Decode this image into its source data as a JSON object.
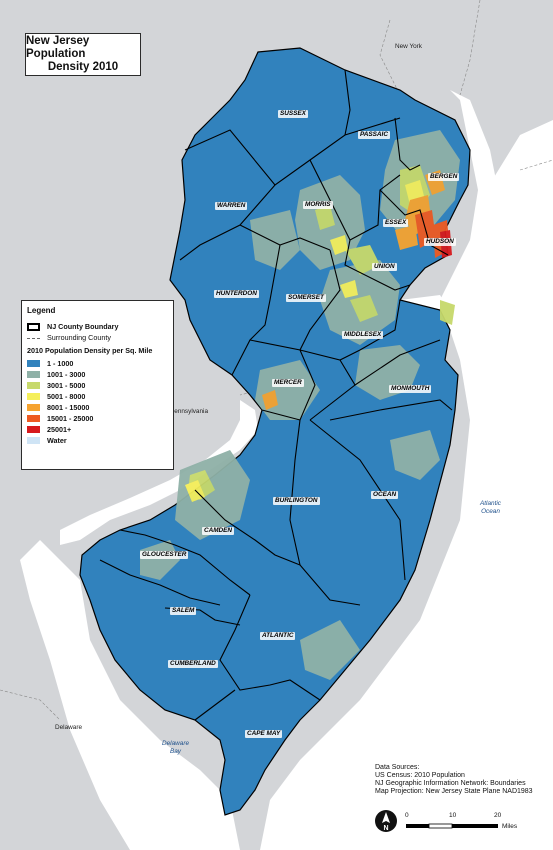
{
  "title": {
    "line1": "New Jersey Population",
    "line2": "Density 2010"
  },
  "legend": {
    "title": "Legend",
    "boundary_label": "NJ County Boundary",
    "surrounding_label": "Surrounding County",
    "density_heading": "2010 Population Density per Sq. Mile",
    "classes": [
      {
        "label": "1 - 1000",
        "color": "#3182bd"
      },
      {
        "label": "1001 - 3000",
        "color": "#8fb1a7"
      },
      {
        "label": "3001 - 5000",
        "color": "#c7d96b"
      },
      {
        "label": "5001 - 8000",
        "color": "#f5ef5a"
      },
      {
        "label": "8001 - 15000",
        "color": "#f6a330"
      },
      {
        "label": "15001 - 25000",
        "color": "#ee5a22"
      },
      {
        "label": "25001+",
        "color": "#d7191c"
      }
    ],
    "water_label": "Water",
    "water_color": "#cfe4f5"
  },
  "counties": {
    "sussex": "SUSSEX",
    "passaic": "PASSAIC",
    "bergen": "BERGEN",
    "warren": "WARREN",
    "morris": "MORRIS",
    "essex": "ESSEX",
    "hudson": "HUDSON",
    "union": "UNION",
    "hunterdon": "HUNTERDON",
    "somerset": "SOMERSET",
    "middlesex": "MIDDLESEX",
    "mercer": "MERCER",
    "monmouth": "MONMOUTH",
    "burlington": "BURLINGTON",
    "ocean": "OCEAN",
    "camden": "CAMDEN",
    "gloucester": "GLOUCESTER",
    "salem": "SALEM",
    "atlantic": "ATLANTIC",
    "cumberland": "CUMBERLAND",
    "cape_may": "CAPE MAY"
  },
  "regions": {
    "new_york": "New York",
    "pennsylvania": "Pennsylvania",
    "delaware": "Delaware"
  },
  "water_bodies": {
    "atlantic_1": "Atlantic",
    "atlantic_2": "Ocean",
    "bay_1": "Delaware",
    "bay_2": "Bay"
  },
  "sources": {
    "line1": "Data Sources:",
    "line2": "US Census: 2010 Population",
    "line3": "NJ Geographic Information Network: Boundaries",
    "line4": "Map Projection: New Jersey State Plane NAD1983"
  },
  "scale": {
    "t0": "0",
    "t1": "10",
    "t2": "20",
    "unit": "Miles"
  },
  "north_arrow_letter": "N",
  "colors": {
    "land_surround": "#d3d5d8",
    "ocean": "#ffffff",
    "nj_base": "#3182bd"
  }
}
